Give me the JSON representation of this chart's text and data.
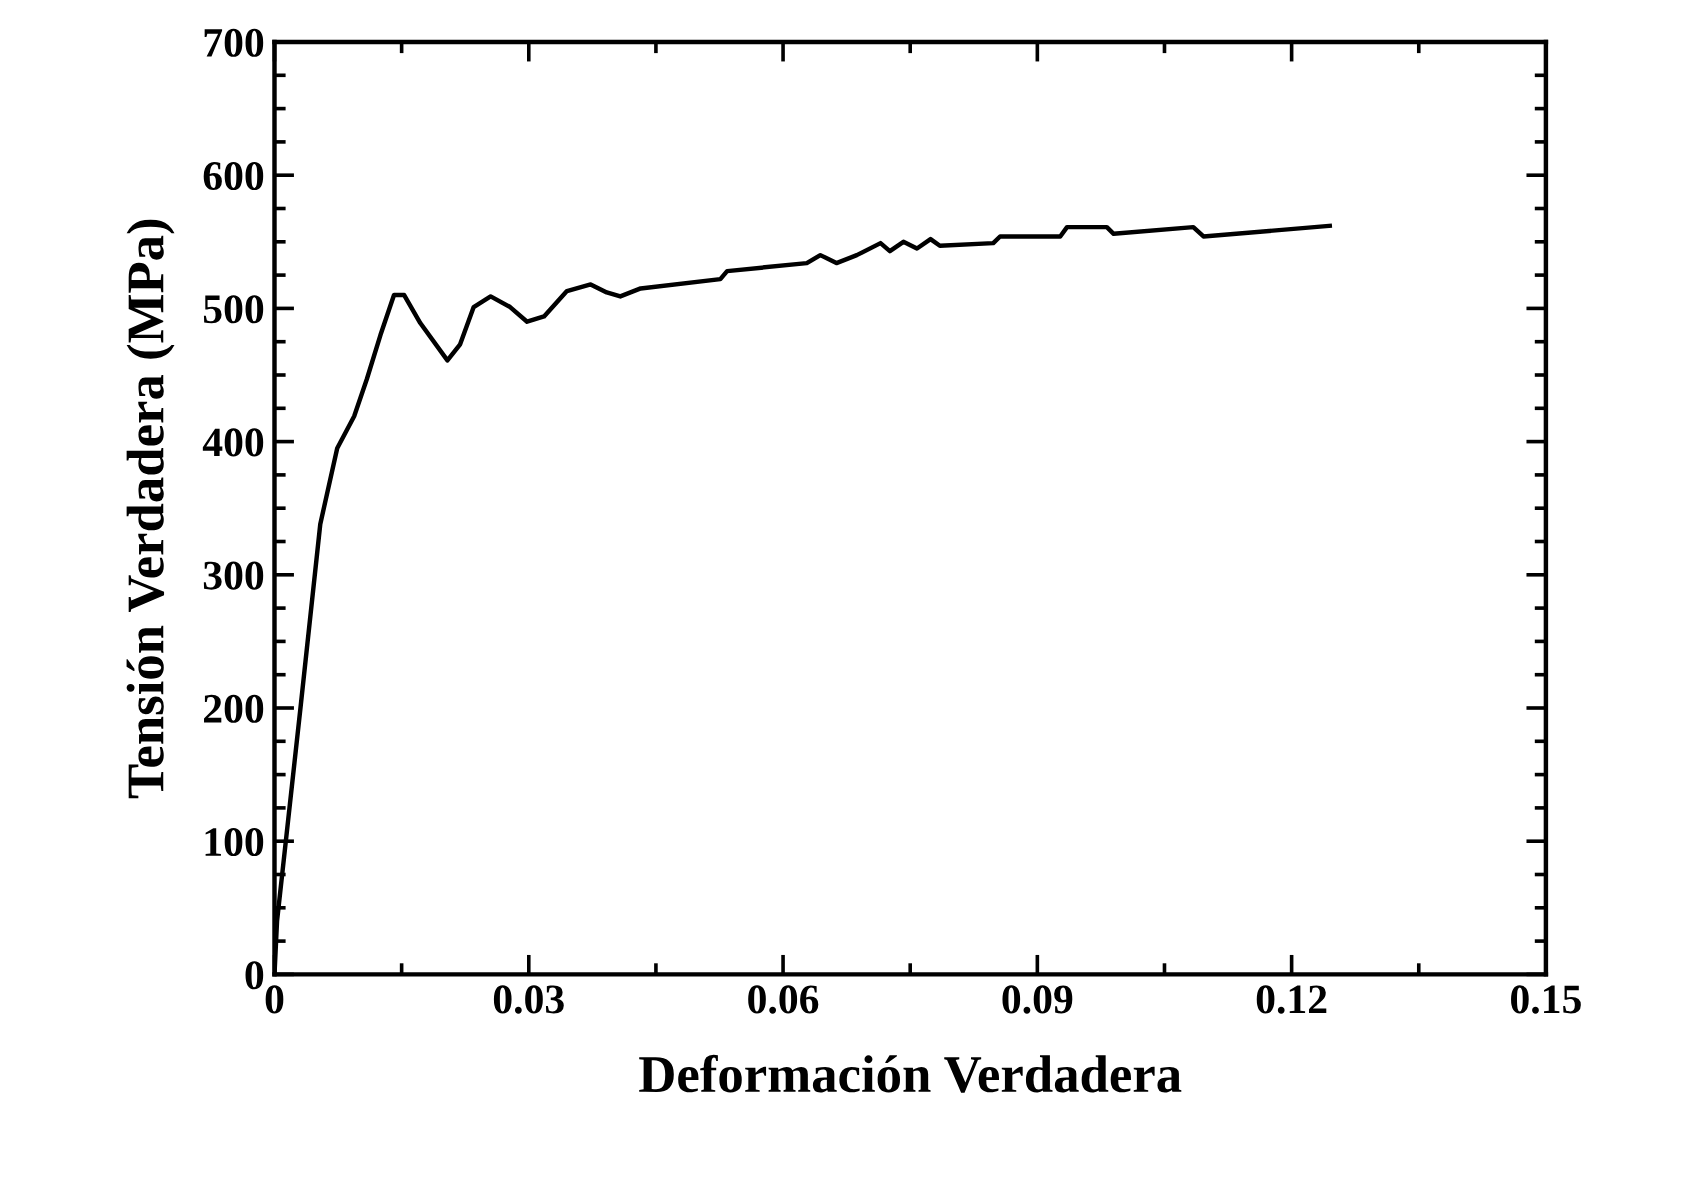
{
  "chart_data": {
    "type": "line",
    "xlabel": "Deformación Verdadera",
    "ylabel": "Tensión Verdadera (MPa)",
    "xlim": [
      0,
      0.15
    ],
    "xticks": [
      0,
      0.03,
      0.06,
      0.09,
      0.12,
      0.15
    ],
    "ylim": [
      0,
      700
    ],
    "yticks": [
      0,
      100,
      200,
      300,
      400,
      500,
      600,
      700
    ],
    "grid": false,
    "legend": false,
    "marker": "none",
    "line_style": "solid",
    "series": [
      {
        "color": "#000000",
        "x": [
          0,
          0.0003,
          0.0031,
          0.0054,
          0.0074,
          0.0094,
          0.0109,
          0.0125,
          0.0141,
          0.0153,
          0.0172,
          0.0204,
          0.0219,
          0.0235,
          0.0255,
          0.0278,
          0.0298,
          0.0318,
          0.0345,
          0.0373,
          0.0392,
          0.0408,
          0.0432,
          0.0526,
          0.0534,
          0.0628,
          0.0644,
          0.0663,
          0.0687,
          0.0715,
          0.0726,
          0.0742,
          0.0758,
          0.0774,
          0.0785,
          0.0848,
          0.0856,
          0.0927,
          0.0935,
          0.0982,
          0.099,
          0.1084,
          0.1096,
          0.1245
        ],
        "values": [
          0,
          40,
          202,
          338,
          395,
          419,
          447,
          480,
          510,
          510,
          489,
          461,
          473,
          501,
          509,
          501,
          490,
          494,
          513,
          518,
          512,
          509,
          515,
          522,
          528,
          534,
          540,
          534,
          540,
          549,
          543,
          550,
          545,
          552,
          547,
          549,
          554,
          554,
          561,
          561,
          556,
          561,
          554,
          562
        ]
      }
    ]
  }
}
